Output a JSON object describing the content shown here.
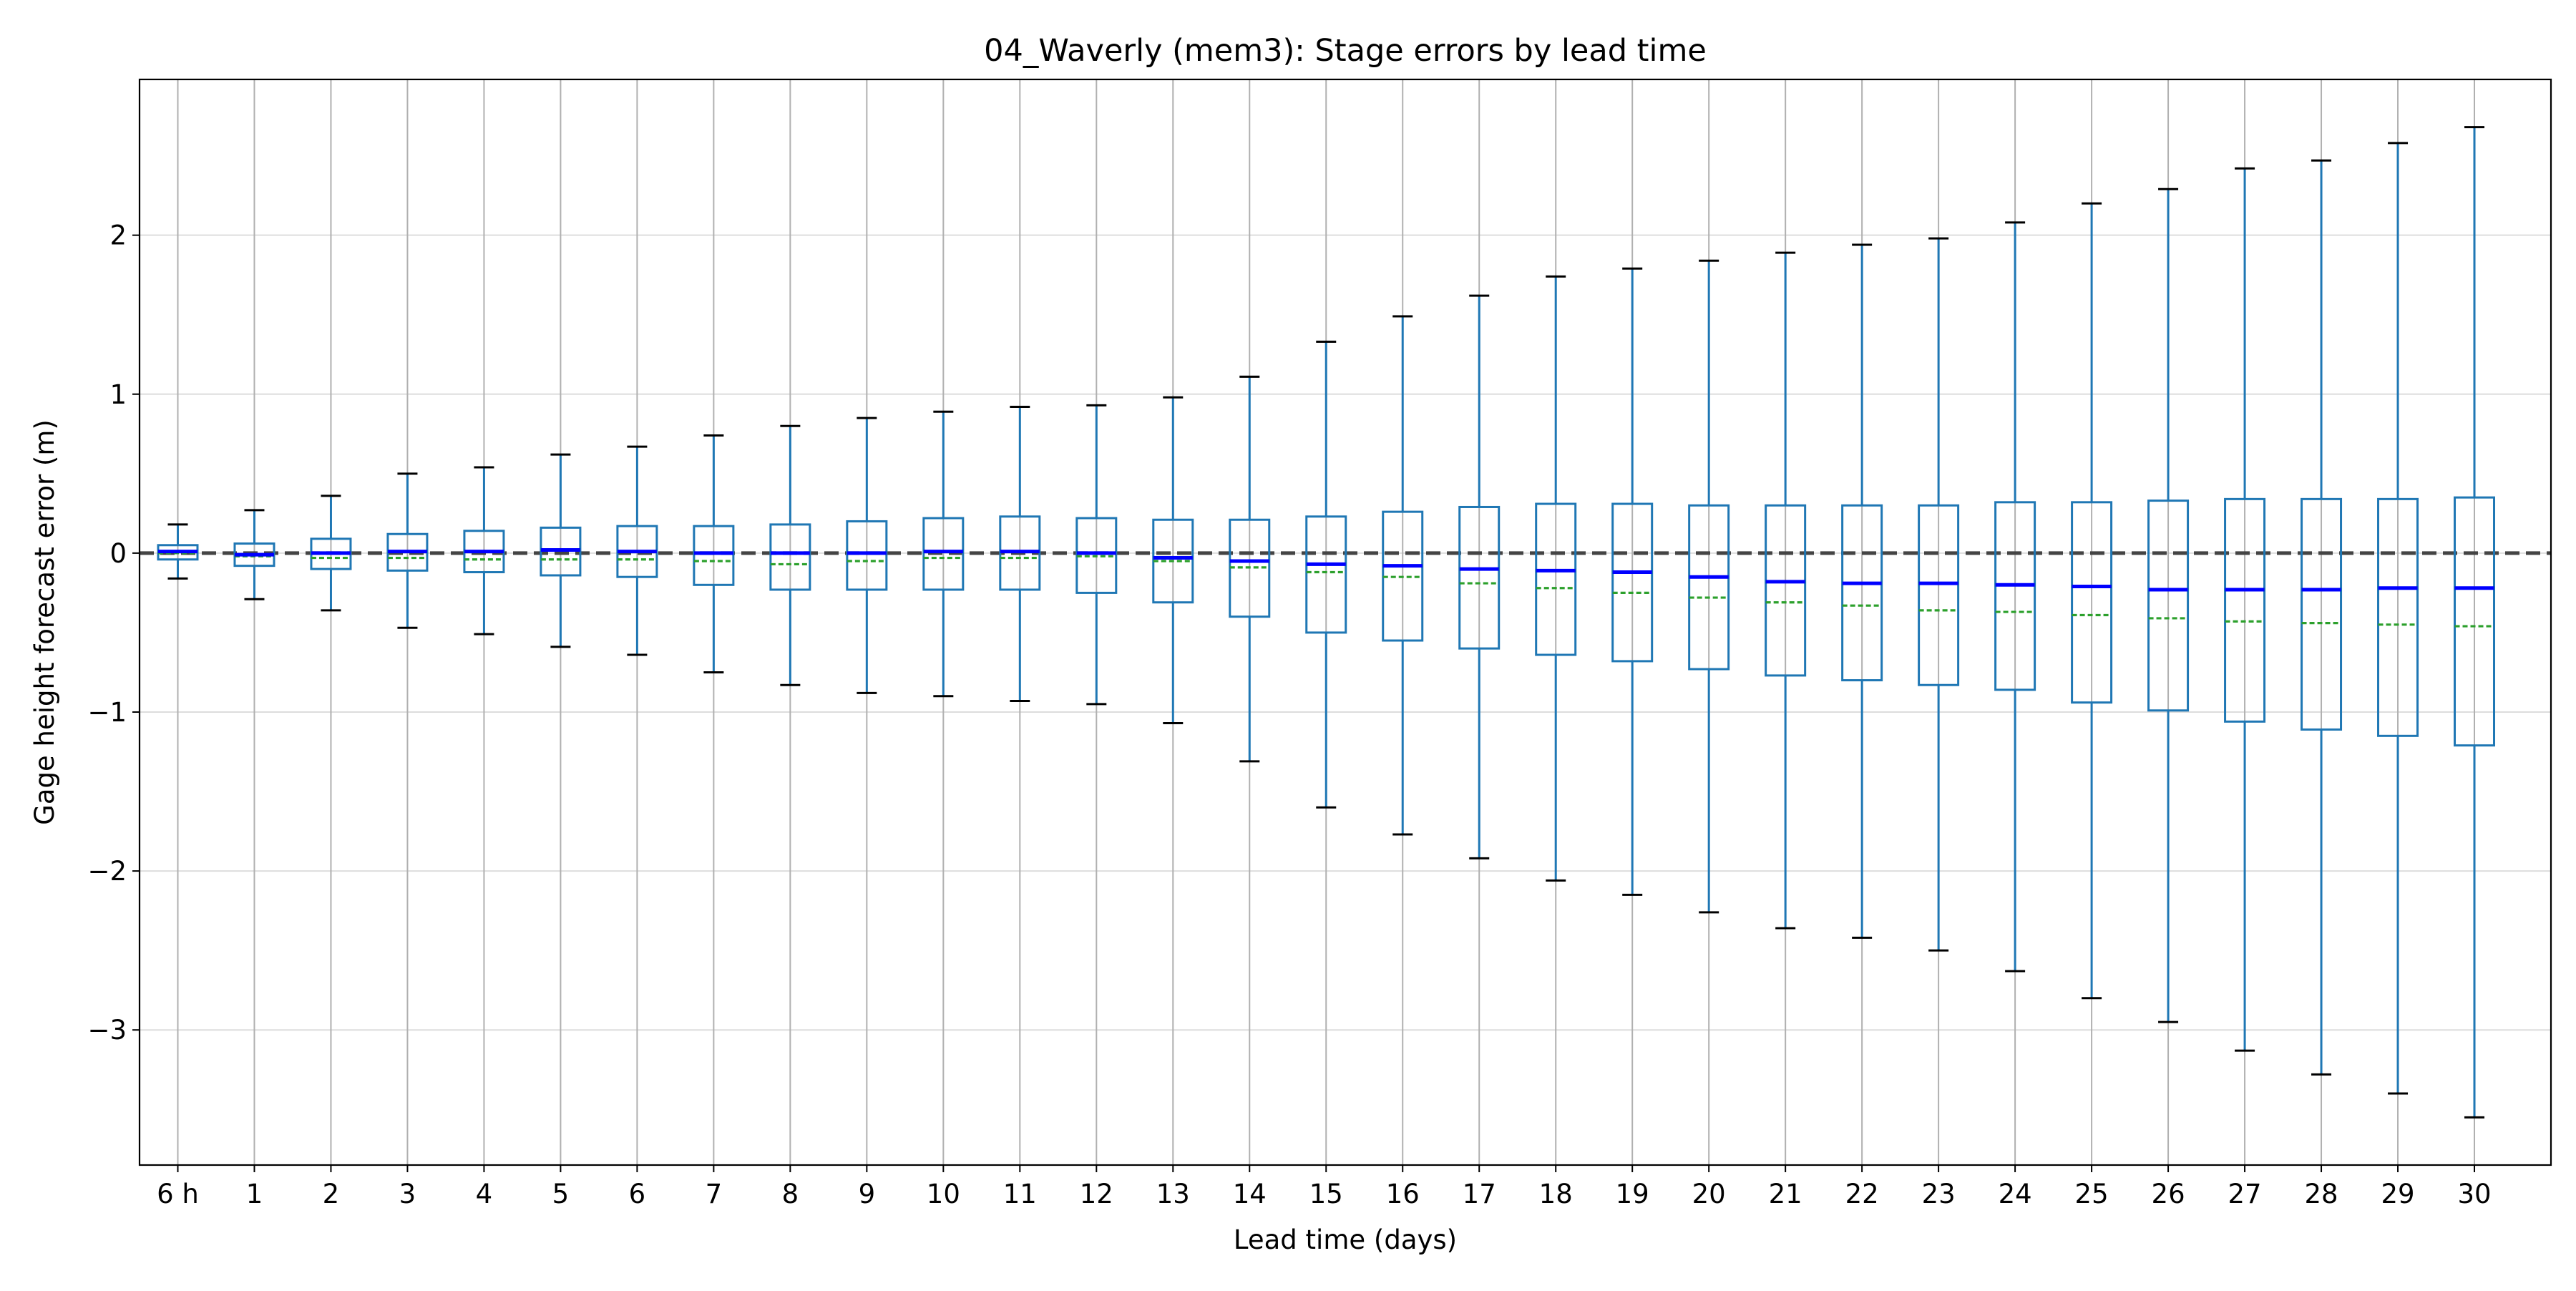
{
  "chart_data": {
    "type": "box",
    "title": "04_Waverly (mem3): Stage errors by lead time",
    "xlabel": "Lead time (days)",
    "ylabel": "Gage height forecast error (m)",
    "ylim": [
      -3.85,
      2.98
    ],
    "yticks": [
      2,
      1,
      0,
      -1,
      -2,
      -3
    ],
    "ytick_labels": [
      "2",
      "1",
      "0",
      "−1",
      "−2",
      "−3"
    ],
    "grid": "y-major light horizontal, x-major vertical",
    "reference_line": {
      "y": 0,
      "style": "dashed"
    },
    "categories": [
      "6 h",
      "1",
      "2",
      "3",
      "4",
      "5",
      "6",
      "7",
      "8",
      "9",
      "10",
      "11",
      "12",
      "13",
      "14",
      "15",
      "16",
      "17",
      "18",
      "19",
      "20",
      "21",
      "22",
      "23",
      "24",
      "25",
      "26",
      "27",
      "28",
      "29",
      "30"
    ],
    "whisker_low": [
      -0.16,
      -0.29,
      -0.36,
      -0.47,
      -0.51,
      -0.59,
      -0.64,
      -0.75,
      -0.83,
      -0.88,
      -0.9,
      -0.93,
      -0.95,
      -1.07,
      -1.31,
      -1.6,
      -1.77,
      -1.92,
      -2.06,
      -2.15,
      -2.26,
      -2.36,
      -2.42,
      -2.5,
      -2.63,
      -2.8,
      -2.95,
      -3.13,
      -3.28,
      -3.4,
      -3.55
    ],
    "q1": [
      -0.04,
      -0.08,
      -0.1,
      -0.11,
      -0.12,
      -0.14,
      -0.15,
      -0.2,
      -0.23,
      -0.23,
      -0.23,
      -0.23,
      -0.25,
      -0.31,
      -0.4,
      -0.5,
      -0.55,
      -0.6,
      -0.64,
      -0.68,
      -0.73,
      -0.77,
      -0.8,
      -0.83,
      -0.86,
      -0.94,
      -0.99,
      -1.06,
      -1.11,
      -1.15,
      -1.21
    ],
    "median": [
      0.01,
      -0.01,
      0.0,
      0.01,
      0.01,
      0.02,
      0.01,
      0.0,
      0.0,
      0.0,
      0.01,
      0.01,
      0.0,
      -0.03,
      -0.05,
      -0.07,
      -0.08,
      -0.1,
      -0.11,
      -0.12,
      -0.15,
      -0.18,
      -0.19,
      -0.19,
      -0.2,
      -0.21,
      -0.23,
      -0.23,
      -0.23,
      -0.22,
      -0.22
    ],
    "mean": [
      0.0,
      -0.02,
      -0.03,
      -0.03,
      -0.04,
      -0.04,
      -0.04,
      -0.05,
      -0.07,
      -0.05,
      -0.03,
      -0.03,
      -0.02,
      -0.05,
      -0.09,
      -0.12,
      -0.15,
      -0.19,
      -0.22,
      -0.25,
      -0.28,
      -0.31,
      -0.33,
      -0.36,
      -0.37,
      -0.39,
      -0.41,
      -0.43,
      -0.44,
      -0.45,
      -0.46
    ],
    "q3": [
      0.05,
      0.06,
      0.09,
      0.12,
      0.14,
      0.16,
      0.17,
      0.17,
      0.18,
      0.2,
      0.22,
      0.23,
      0.22,
      0.21,
      0.21,
      0.23,
      0.26,
      0.29,
      0.31,
      0.31,
      0.3,
      0.3,
      0.3,
      0.3,
      0.32,
      0.32,
      0.33,
      0.34,
      0.34,
      0.34,
      0.35
    ],
    "whisker_high": [
      0.18,
      0.27,
      0.36,
      0.5,
      0.54,
      0.62,
      0.67,
      0.74,
      0.8,
      0.85,
      0.89,
      0.92,
      0.93,
      0.98,
      1.11,
      1.33,
      1.49,
      1.62,
      1.74,
      1.79,
      1.84,
      1.89,
      1.94,
      1.98,
      2.08,
      2.2,
      2.29,
      2.42,
      2.47,
      2.58,
      2.68
    ],
    "colors": {
      "box": "#1f77b4",
      "median": "#0000ff",
      "mean": "#2ca02c",
      "caps": "#000000",
      "zero_line": "#444444",
      "grid": "#dddddd",
      "xgrid": "#b0b0b0"
    }
  }
}
